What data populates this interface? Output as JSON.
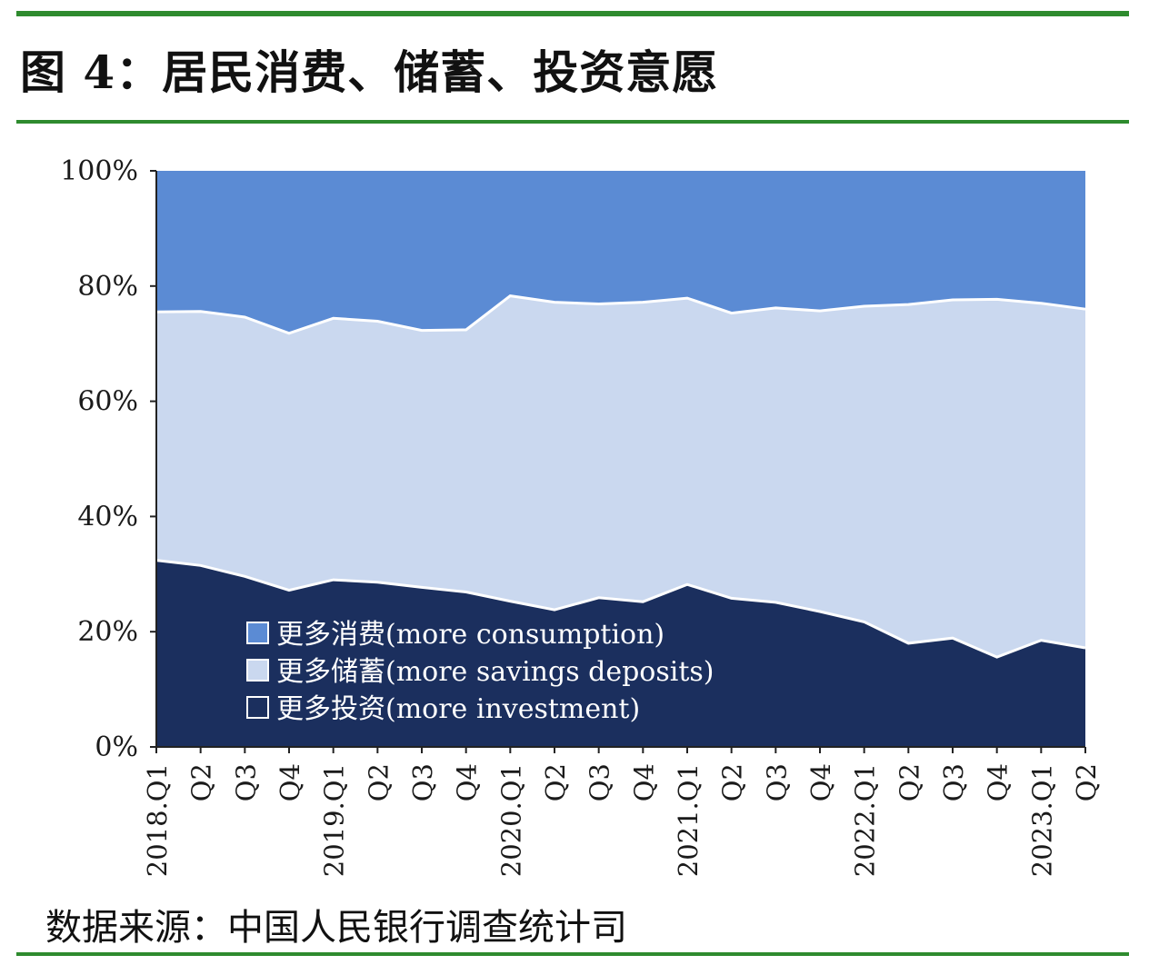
{
  "header": {
    "figure_title": "图 4：居民消费、储蓄、投资意愿"
  },
  "footer": {
    "source": "数据来源：中国人民银行调查统计司"
  },
  "colors": {
    "rule": "#2e8b2e",
    "consumption": "#5b8bd4",
    "savings": "#cad8ef",
    "investment": "#1b2f5e"
  },
  "chart_data": {
    "type": "area",
    "stacked": true,
    "ylim": [
      0,
      100
    ],
    "yticks": [
      "0%",
      "20%",
      "40%",
      "60%",
      "80%",
      "100%"
    ],
    "categories": [
      "2018.Q1",
      "Q2",
      "Q3",
      "Q4",
      "2019.Q1",
      "Q2",
      "Q3",
      "Q4",
      "2020.Q1",
      "Q2",
      "Q3",
      "Q4",
      "2021.Q1",
      "Q2",
      "Q3",
      "Q4",
      "2022.Q1",
      "Q2",
      "Q3",
      "Q4",
      "2023.Q1",
      "Q2"
    ],
    "legend_position": "bottom-left inside",
    "series": [
      {
        "name": "更多消费(more consumption)",
        "key": "consumption",
        "values": [
          24.5,
          24.4,
          25.4,
          28.2,
          25.6,
          26.1,
          27.7,
          27.6,
          21.7,
          22.8,
          23.1,
          22.8,
          22.1,
          24.7,
          23.8,
          24.3,
          23.5,
          23.2,
          22.4,
          22.3,
          23.0,
          24.0
        ]
      },
      {
        "name": "更多储蓄(more savings deposits)",
        "key": "savings",
        "values": [
          43.1,
          44.1,
          45.0,
          44.6,
          45.4,
          45.3,
          44.6,
          45.5,
          53.0,
          53.4,
          51.0,
          52.0,
          49.7,
          49.5,
          51.1,
          52.2,
          54.8,
          58.8,
          58.7,
          62.1,
          58.5,
          58.8
        ]
      },
      {
        "name": "更多投资(more investment)",
        "key": "investment",
        "values": [
          32.4,
          31.5,
          29.6,
          27.2,
          29.0,
          28.6,
          27.7,
          26.9,
          25.3,
          23.8,
          25.9,
          25.2,
          28.2,
          25.8,
          25.1,
          23.5,
          21.7,
          18.0,
          18.9,
          15.6,
          18.5,
          17.2
        ]
      }
    ]
  }
}
